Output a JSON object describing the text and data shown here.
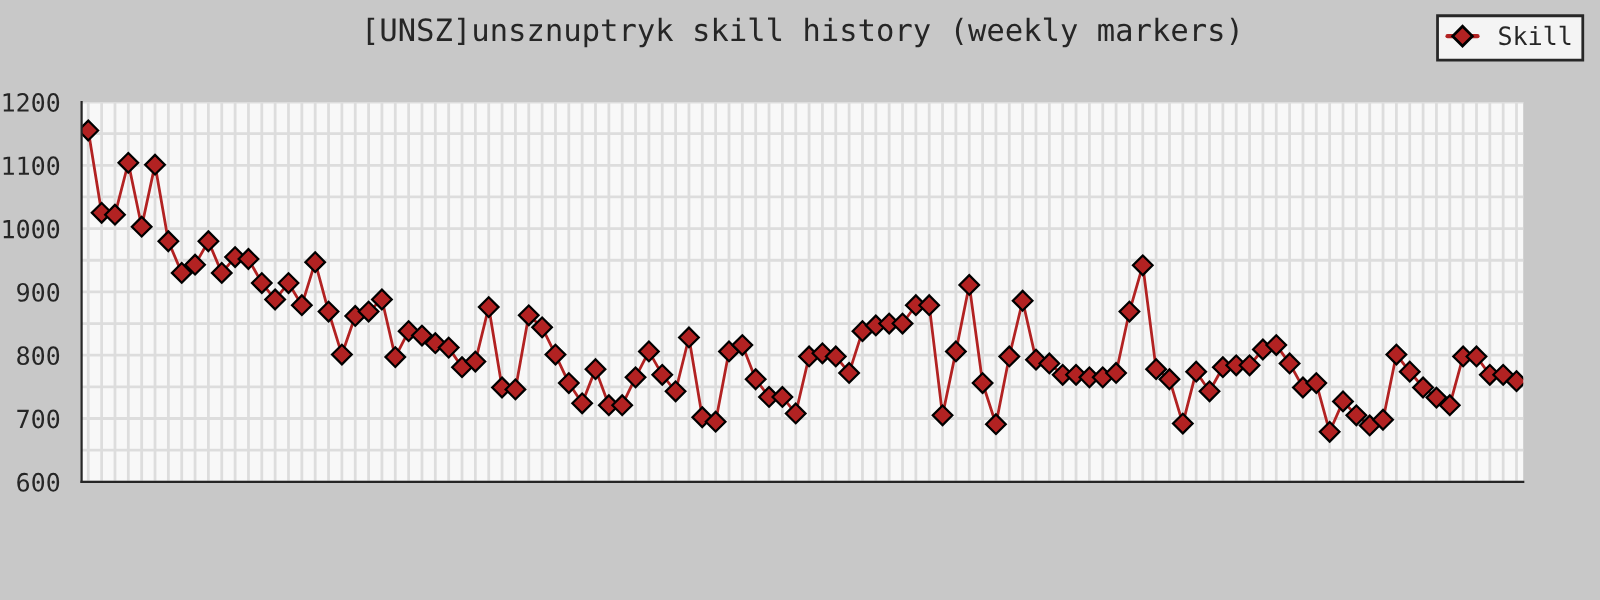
{
  "chart_data": {
    "type": "line",
    "title": "[UNSZ]unsznuptryk skill history (weekly markers)",
    "categories": [
      null,
      null,
      null,
      null,
      null,
      null,
      null,
      null,
      null,
      null,
      null,
      null,
      null,
      null,
      null,
      null,
      null,
      null,
      null,
      null,
      null,
      null,
      null,
      null,
      null,
      null,
      null,
      null,
      null,
      null,
      null,
      null,
      null,
      null,
      null,
      null,
      null,
      null,
      null,
      null,
      null,
      null,
      null,
      null,
      null,
      null,
      null,
      null,
      null,
      null,
      null,
      null,
      null,
      null,
      null,
      null,
      null,
      null,
      null,
      null,
      null,
      null,
      null,
      null,
      null,
      null,
      null,
      null,
      null,
      null,
      null,
      null,
      null,
      null,
      null,
      null,
      null,
      null,
      null,
      null,
      null,
      null,
      null,
      null,
      null,
      null,
      null,
      null,
      null,
      null,
      null,
      null,
      null,
      null,
      null,
      null,
      null,
      null,
      null,
      null,
      null,
      null,
      null,
      null,
      null,
      null,
      null,
      null
    ],
    "series": [
      {
        "name": "Skill",
        "color": "#b22222",
        "values": [
          1155,
          1025,
          1022,
          1104,
          1003,
          1101,
          980,
          930,
          943,
          980,
          930,
          955,
          952,
          914,
          888,
          914,
          879,
          947,
          869,
          801,
          862,
          869,
          888,
          797,
          838,
          831,
          819,
          812,
          781,
          790,
          876,
          749,
          746,
          863,
          844,
          801,
          756,
          724,
          778,
          721,
          721,
          765,
          806,
          769,
          743,
          828,
          702,
          695,
          806,
          816,
          762,
          734,
          734,
          708,
          798,
          803,
          798,
          772,
          838,
          847,
          850,
          850,
          879,
          879,
          705,
          806,
          911,
          756,
          691,
          798,
          886,
          793,
          787,
          769,
          769,
          765,
          765,
          772,
          869,
          942,
          778,
          762,
          692,
          774,
          743,
          781,
          784,
          784,
          809,
          816,
          787,
          749,
          756,
          679,
          727,
          705,
          689,
          698,
          801,
          774,
          749,
          733,
          721,
          798,
          798,
          769,
          769,
          759
        ]
      }
    ],
    "ylim": [
      600,
      1200
    ],
    "yticks": [
      600,
      {
        "value": 650,
        "label": null
      },
      700,
      {
        "value": 750,
        "label": null
      },
      800,
      {
        "value": 850,
        "label": null
      },
      900,
      {
        "value": 950,
        "label": null
      },
      1000,
      {
        "value": 1050,
        "label": null
      },
      1100,
      {
        "value": 1150,
        "label": null
      },
      1200
    ],
    "grid": true,
    "legend": "top right",
    "marker": "diamond",
    "line_style": "solid"
  }
}
